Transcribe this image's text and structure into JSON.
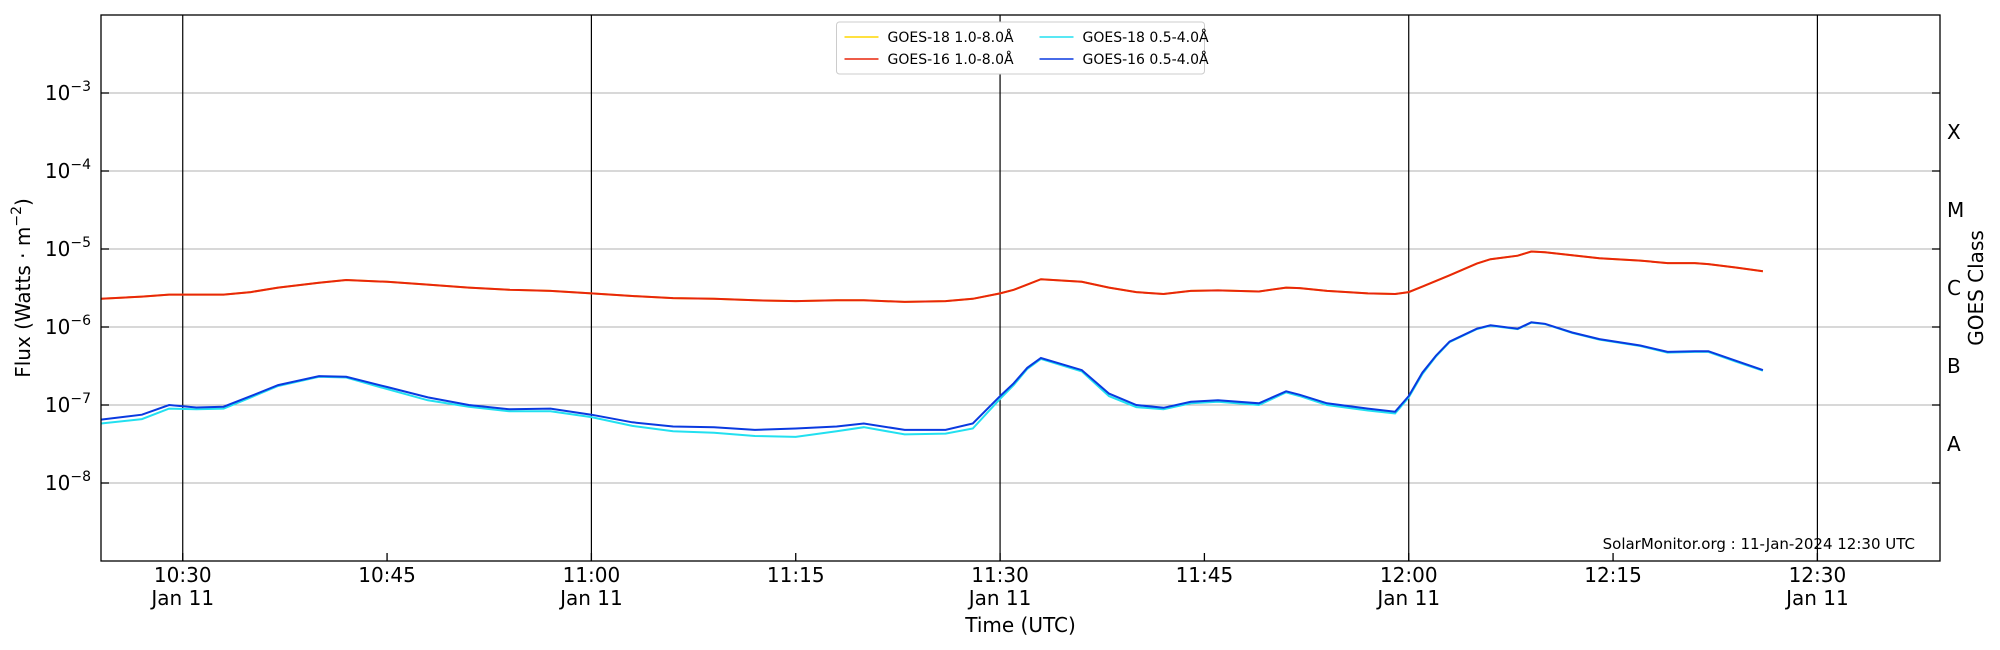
{
  "chart_data": {
    "type": "line",
    "ylabel": "Flux (Watts · m",
    "ylabel_exponent": "−2",
    "ylabel_close": ")",
    "xlabel": "Time (UTC)",
    "y2label": "GOES Class",
    "annotation": "SolarMonitor.org : 11-Jan-2024 12:30 UTC",
    "log_y": true,
    "grid": true,
    "legend": "upper center",
    "xlim": [
      "10:24",
      "12:39"
    ],
    "ylim": [
      1e-09,
      0.01
    ],
    "xticks": [
      {
        "value": "10:30",
        "label": "10:30",
        "date": "Jan 11"
      },
      "10:45",
      {
        "value": "11:00",
        "label": "11:00",
        "date": "Jan 11"
      },
      "11:15",
      {
        "value": "11:30",
        "label": "11:30",
        "date": "Jan 11"
      },
      "11:45",
      {
        "value": "12:00",
        "label": "12:00",
        "date": "Jan 11"
      },
      "12:15",
      {
        "value": "12:30",
        "label": "12:30",
        "date": "Jan 11"
      }
    ],
    "yticks": [
      {
        "value": 1e-08,
        "label": "10",
        "exponent": "−8"
      },
      {
        "value": 1e-07,
        "label": "10",
        "exponent": "−7"
      },
      {
        "value": 1e-06,
        "label": "10",
        "exponent": "−6"
      },
      {
        "value": 1e-05,
        "label": "10",
        "exponent": "−5"
      },
      {
        "value": 0.0001,
        "label": "10",
        "exponent": "−4"
      },
      {
        "value": 0.001,
        "label": "10",
        "exponent": "−3"
      }
    ],
    "classes": [
      {
        "label": "A",
        "value": 3.162e-08
      },
      {
        "label": "B",
        "value": 3.162e-07
      },
      {
        "label": "C",
        "value": 3.162e-06
      },
      {
        "label": "M",
        "value": 3.162e-05
      },
      {
        "label": "X",
        "value": 0.0003162
      }
    ],
    "x": [
      "10:24",
      "10:27",
      "10:29",
      "10:31",
      "10:33",
      "10:35",
      "10:37",
      "10:40",
      "10:42",
      "10:45",
      "10:48",
      "10:51",
      "10:54",
      "10:57",
      "11:00",
      "11:03",
      "11:06",
      "11:09",
      "11:12",
      "11:15",
      "11:18",
      "11:20",
      "11:23",
      "11:26",
      "11:28",
      "11:30",
      "11:31",
      "11:32",
      "11:33",
      "11:36",
      "11:38",
      "11:40",
      "11:42",
      "11:44",
      "11:46",
      "11:49",
      "11:51",
      "11:52",
      "11:54",
      "11:57",
      "11:59",
      "12:00",
      "12:01",
      "12:02",
      "12:03",
      "12:05",
      "12:06",
      "12:08",
      "12:09",
      "12:10",
      "12:12",
      "12:14",
      "12:17",
      "12:19",
      "12:21",
      "12:22",
      "12:24",
      "12:26"
    ],
    "series": [
      {
        "name": "GOES-18 1.0-8.0Å",
        "color": "#ffd700",
        "values": [
          2.3e-06,
          2.45e-06,
          2.6e-06,
          2.6e-06,
          2.6e-06,
          2.8e-06,
          3.2e-06,
          3.7e-06,
          4e-06,
          3.8e-06,
          3.5e-06,
          3.2e-06,
          3e-06,
          2.9e-06,
          2.7e-06,
          2.5e-06,
          2.35e-06,
          2.3e-06,
          2.2e-06,
          2.15e-06,
          2.2e-06,
          2.2e-06,
          2.1e-06,
          2.15e-06,
          2.3e-06,
          2.7e-06,
          3e-06,
          3.5e-06,
          4.1e-06,
          3.8e-06,
          3.2e-06,
          2.8e-06,
          2.65e-06,
          2.9e-06,
          2.95e-06,
          2.85e-06,
          3.2e-06,
          3.15e-06,
          2.9e-06,
          2.7e-06,
          2.65e-06,
          2.8e-06,
          3.3e-06,
          3.9e-06,
          4.6e-06,
          6.5e-06,
          7.4e-06,
          8.2e-06,
          9.3e-06,
          9.1e-06,
          8.3e-06,
          7.6e-06,
          7.1e-06,
          6.6e-06,
          6.6e-06,
          6.4e-06,
          5.8e-06,
          5.2e-06
        ]
      },
      {
        "name": "GOES-16 1.0-8.0Å",
        "color": "#e8260c",
        "values": [
          2.3e-06,
          2.45e-06,
          2.6e-06,
          2.6e-06,
          2.6e-06,
          2.8e-06,
          3.2e-06,
          3.7e-06,
          4e-06,
          3.8e-06,
          3.5e-06,
          3.2e-06,
          3e-06,
          2.9e-06,
          2.7e-06,
          2.5e-06,
          2.35e-06,
          2.3e-06,
          2.2e-06,
          2.15e-06,
          2.2e-06,
          2.2e-06,
          2.1e-06,
          2.15e-06,
          2.3e-06,
          2.7e-06,
          3e-06,
          3.5e-06,
          4.1e-06,
          3.8e-06,
          3.2e-06,
          2.8e-06,
          2.65e-06,
          2.9e-06,
          2.95e-06,
          2.85e-06,
          3.2e-06,
          3.15e-06,
          2.9e-06,
          2.7e-06,
          2.65e-06,
          2.8e-06,
          3.3e-06,
          3.9e-06,
          4.6e-06,
          6.5e-06,
          7.4e-06,
          8.2e-06,
          9.3e-06,
          9.1e-06,
          8.3e-06,
          7.6e-06,
          7.1e-06,
          6.6e-06,
          6.6e-06,
          6.4e-06,
          5.8e-06,
          5.2e-06
        ]
      },
      {
        "name": "GOES-18 0.5-4.0Å",
        "color": "#22e0f0",
        "values": [
          5.8e-08,
          6.6e-08,
          9e-08,
          8.8e-08,
          9e-08,
          1.25e-07,
          1.75e-07,
          2.3e-07,
          2.25e-07,
          1.6e-07,
          1.15e-07,
          9.5e-08,
          8.3e-08,
          8.3e-08,
          7e-08,
          5.4e-08,
          4.6e-08,
          4.4e-08,
          4e-08,
          3.9e-08,
          4.6e-08,
          5.2e-08,
          4.2e-08,
          4.3e-08,
          5e-08,
          1.2e-07,
          1.8e-07,
          2.9e-07,
          3.9e-07,
          2.7e-07,
          1.3e-07,
          9.4e-08,
          8.8e-08,
          1.05e-07,
          1.1e-07,
          1e-07,
          1.45e-07,
          1.3e-07,
          1e-07,
          8.5e-08,
          7.8e-08,
          1.25e-07,
          2.5e-07,
          4.2e-07,
          6.4e-07,
          9.4e-07,
          1.04e-06,
          9.4e-07,
          1.14e-06,
          1.09e-06,
          8.4e-07,
          6.9e-07,
          5.7e-07,
          4.7e-07,
          4.8e-07,
          4.8e-07,
          3.6e-07,
          2.75e-07
        ]
      },
      {
        "name": "GOES-16 0.5-4.0Å",
        "color": "#0a3ae0",
        "values": [
          6.5e-08,
          7.5e-08,
          1e-07,
          9.3e-08,
          9.5e-08,
          1.3e-07,
          1.8e-07,
          2.35e-07,
          2.3e-07,
          1.7e-07,
          1.25e-07,
          1e-07,
          8.8e-08,
          9e-08,
          7.5e-08,
          6e-08,
          5.3e-08,
          5.2e-08,
          4.8e-08,
          5e-08,
          5.3e-08,
          5.8e-08,
          4.8e-08,
          4.8e-08,
          5.8e-08,
          1.3e-07,
          1.9e-07,
          3e-07,
          4e-07,
          2.8e-07,
          1.4e-07,
          1e-07,
          9.2e-08,
          1.1e-07,
          1.15e-07,
          1.05e-07,
          1.5e-07,
          1.35e-07,
          1.05e-07,
          9e-08,
          8.2e-08,
          1.3e-07,
          2.6e-07,
          4.3e-07,
          6.5e-07,
          9.5e-07,
          1.05e-06,
          9.5e-07,
          1.15e-06,
          1.1e-06,
          8.5e-07,
          7e-07,
          5.8e-07,
          4.8e-07,
          4.9e-07,
          4.9e-07,
          3.7e-07,
          2.8e-07
        ]
      }
    ]
  }
}
